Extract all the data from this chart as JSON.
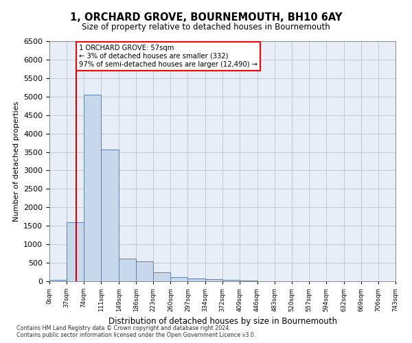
{
  "title": "1, ORCHARD GROVE, BOURNEMOUTH, BH10 6AY",
  "subtitle": "Size of property relative to detached houses in Bournemouth",
  "xlabel": "Distribution of detached houses by size in Bournemouth",
  "ylabel": "Number of detached properties",
  "bar_edges": [
    0,
    37,
    74,
    111,
    149,
    186,
    223,
    260,
    297,
    334,
    372,
    409,
    446,
    483,
    520,
    557,
    594,
    632,
    669,
    706,
    743
  ],
  "bar_heights": [
    28,
    1600,
    5050,
    3560,
    615,
    545,
    235,
    115,
    78,
    52,
    38,
    18,
    9,
    5,
    2,
    1,
    0,
    0,
    0,
    0
  ],
  "bar_color": "#c8d8eb",
  "bar_edge_color": "#5a80b0",
  "property_line_x": 57,
  "property_line_color": "#cc0000",
  "annotation_line1": "1 ORCHARD GROVE: 57sqm",
  "annotation_line2": "← 3% of detached houses are smaller (332)",
  "annotation_line3": "97% of semi-detached houses are larger (12,490) →",
  "annotation_box_color": "white",
  "annotation_box_edge_color": "red",
  "ylim_min": 0,
  "ylim_max": 6500,
  "yticks": [
    0,
    500,
    1000,
    1500,
    2000,
    2500,
    3000,
    3500,
    4000,
    4500,
    5000,
    5500,
    6000,
    6500
  ],
  "tick_labels": [
    "0sqm",
    "37sqm",
    "74sqm",
    "111sqm",
    "149sqm",
    "186sqm",
    "223sqm",
    "260sqm",
    "297sqm",
    "334sqm",
    "372sqm",
    "409sqm",
    "446sqm",
    "483sqm",
    "520sqm",
    "557sqm",
    "594sqm",
    "632sqm",
    "669sqm",
    "706sqm",
    "743sqm"
  ],
  "grid_color": "#c0c8d8",
  "bg_color": "#e8eef8",
  "footer1": "Contains HM Land Registry data © Crown copyright and database right 2024.",
  "footer2": "Contains public sector information licensed under the Open Government Licence v3.0."
}
